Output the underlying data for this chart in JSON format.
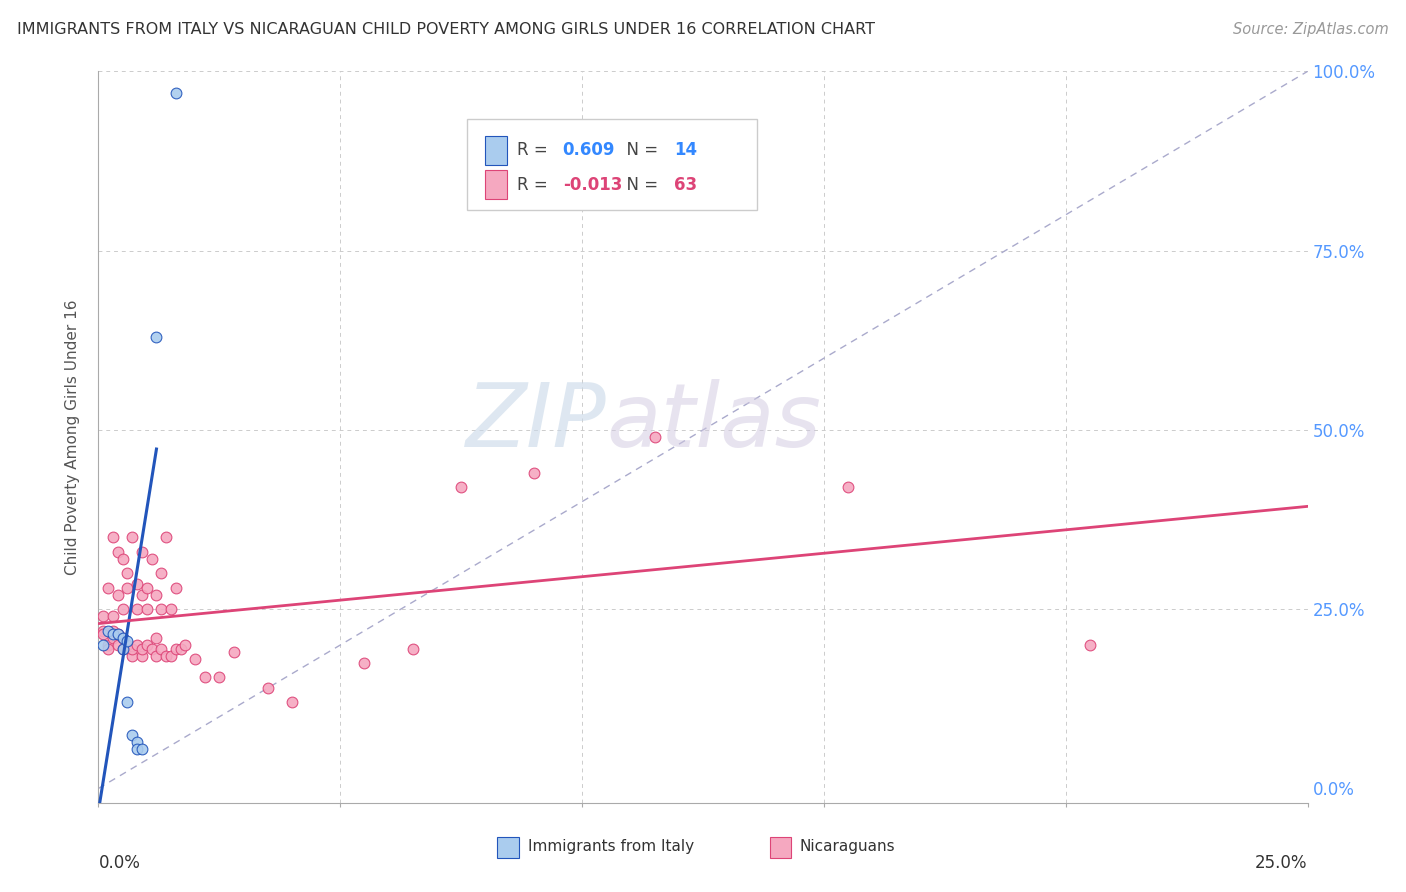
{
  "title": "IMMIGRANTS FROM ITALY VS NICARAGUAN CHILD POVERTY AMONG GIRLS UNDER 16 CORRELATION CHART",
  "source": "Source: ZipAtlas.com",
  "ylabel": "Child Poverty Among Girls Under 16",
  "xlim": [
    0.0,
    0.25
  ],
  "ylim": [
    -0.02,
    1.0
  ],
  "ytick_vals": [
    0.0,
    0.25,
    0.5,
    0.75,
    1.0
  ],
  "ytick_labels": [
    "0.0%",
    "25.0%",
    "50.0%",
    "75.0%",
    "100.0%"
  ],
  "watermark_zip": "ZIP",
  "watermark_atlas": "atlas",
  "blue_color": "#aaccee",
  "pink_color": "#f5a8c0",
  "blue_line_color": "#2255bb",
  "pink_line_color": "#dd4477",
  "blue_r": "0.609",
  "blue_n": "14",
  "pink_r": "-0.013",
  "pink_n": "63",
  "italy_x": [
    0.001,
    0.002,
    0.003,
    0.004,
    0.005,
    0.005,
    0.006,
    0.006,
    0.007,
    0.008,
    0.008,
    0.009,
    0.012,
    0.016
  ],
  "italy_y": [
    0.2,
    0.22,
    0.215,
    0.215,
    0.21,
    0.195,
    0.205,
    0.12,
    0.075,
    0.065,
    0.055,
    0.055,
    0.63,
    0.97
  ],
  "nicaragua_x": [
    0.001,
    0.001,
    0.001,
    0.002,
    0.002,
    0.002,
    0.003,
    0.003,
    0.003,
    0.003,
    0.004,
    0.004,
    0.004,
    0.004,
    0.005,
    0.005,
    0.005,
    0.005,
    0.006,
    0.006,
    0.006,
    0.007,
    0.007,
    0.007,
    0.008,
    0.008,
    0.008,
    0.009,
    0.009,
    0.009,
    0.009,
    0.01,
    0.01,
    0.01,
    0.011,
    0.011,
    0.012,
    0.012,
    0.012,
    0.013,
    0.013,
    0.013,
    0.014,
    0.014,
    0.015,
    0.015,
    0.016,
    0.016,
    0.017,
    0.018,
    0.02,
    0.022,
    0.025,
    0.028,
    0.035,
    0.04,
    0.055,
    0.065,
    0.075,
    0.09,
    0.115,
    0.155,
    0.205
  ],
  "nicaragua_y": [
    0.22,
    0.215,
    0.24,
    0.2,
    0.195,
    0.28,
    0.21,
    0.22,
    0.24,
    0.35,
    0.2,
    0.215,
    0.27,
    0.33,
    0.195,
    0.21,
    0.25,
    0.32,
    0.2,
    0.28,
    0.3,
    0.185,
    0.195,
    0.35,
    0.2,
    0.25,
    0.285,
    0.185,
    0.195,
    0.27,
    0.33,
    0.2,
    0.25,
    0.28,
    0.195,
    0.32,
    0.185,
    0.21,
    0.27,
    0.195,
    0.25,
    0.3,
    0.185,
    0.35,
    0.185,
    0.25,
    0.195,
    0.28,
    0.195,
    0.2,
    0.18,
    0.155,
    0.155,
    0.19,
    0.14,
    0.12,
    0.175,
    0.195,
    0.42,
    0.44,
    0.49,
    0.42,
    0.2
  ]
}
